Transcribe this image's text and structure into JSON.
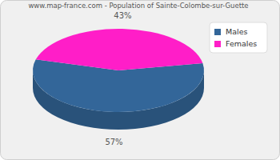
{
  "chart_data": {
    "type": "pie",
    "title": "www.map-france.com - Population of Sainte-Colombe-sur-Guette",
    "categories": [
      "Males",
      "Females"
    ],
    "values": [
      57,
      43
    ],
    "value_labels": [
      "57%",
      "43%"
    ],
    "colors": [
      "#336699",
      "#ff1ec8"
    ],
    "data_labels": true,
    "legend": "top-right"
  }
}
